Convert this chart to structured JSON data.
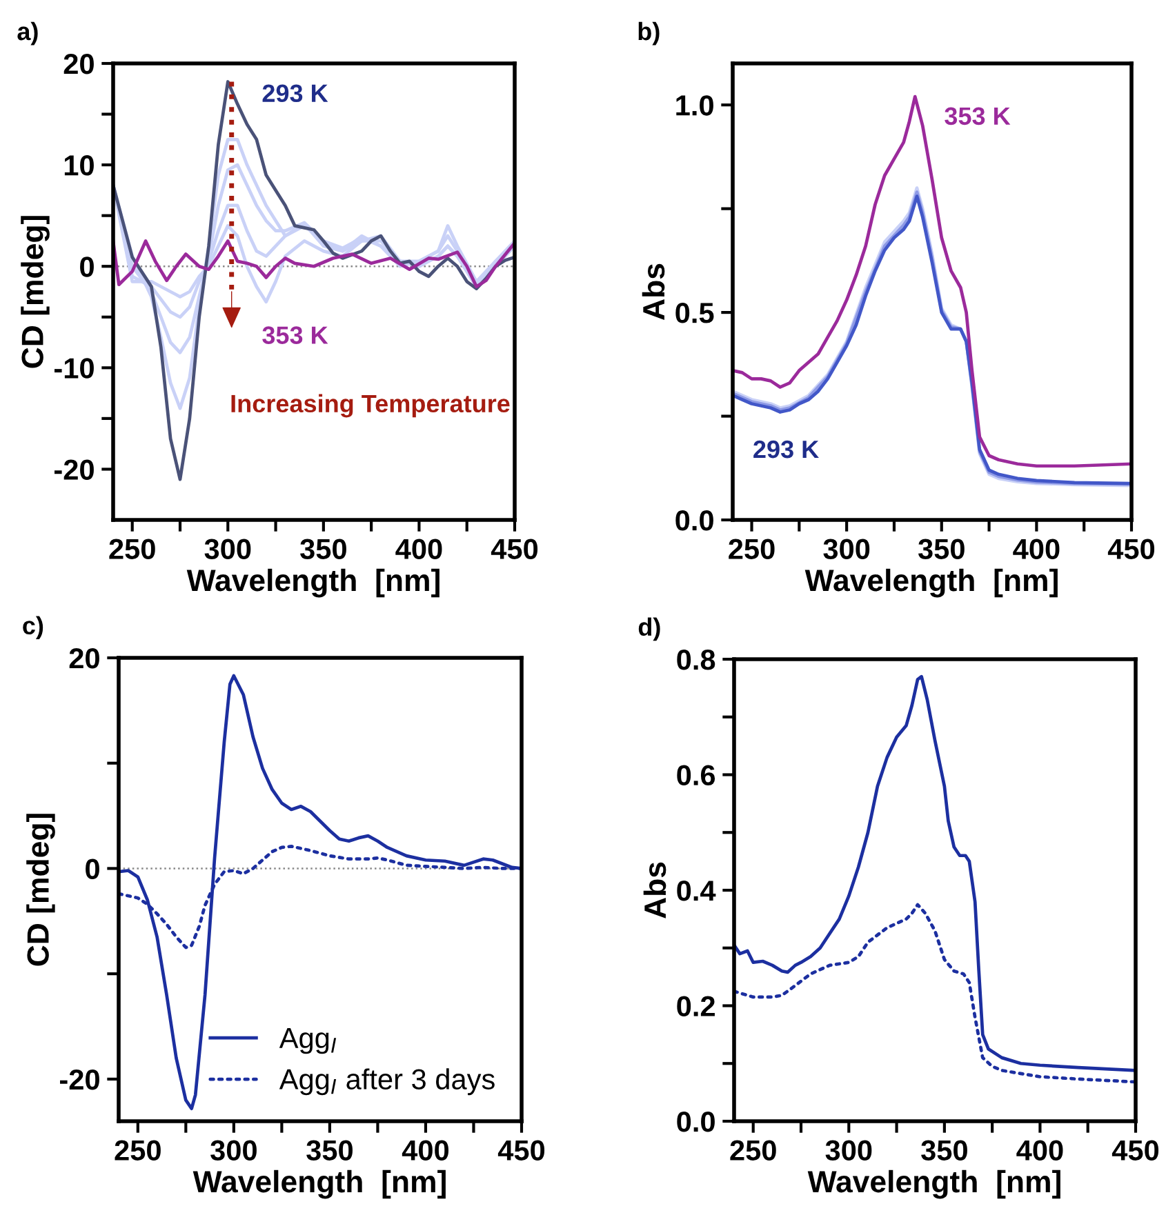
{
  "chart_data": [
    {
      "type": "line",
      "title": "a)",
      "xlabel": "Wavelength  [nm]",
      "ylabel": "CD [mdeg]",
      "xlim": [
        240,
        450
      ],
      "ylim": [
        -25,
        20
      ],
      "xticks": [
        {
          "value": 250,
          "label": "250"
        },
        {
          "value": 275,
          "label": null
        },
        {
          "value": 300,
          "label": "300"
        },
        {
          "value": 325,
          "label": null
        },
        {
          "value": 350,
          "label": "350"
        },
        {
          "value": 375,
          "label": null
        },
        {
          "value": 400,
          "label": "400"
        },
        {
          "value": 425,
          "label": null
        },
        {
          "value": 450,
          "label": "450"
        }
      ],
      "yticks": [
        {
          "value": -20,
          "label": "-20"
        },
        {
          "value": -15,
          "label": null
        },
        {
          "value": -10,
          "label": "-10"
        },
        {
          "value": -5,
          "label": null
        },
        0,
        {
          "value": 5,
          "label": null
        },
        10,
        {
          "value": 15,
          "label": null
        },
        20
      ],
      "ref_lines": [
        {
          "axis": "y",
          "value": 0,
          "color": "#888888",
          "line_style": "dotted"
        }
      ],
      "series": [
        {
          "color": "#c9d1f7",
          "x": [
            240,
            250,
            260,
            265,
            270,
            275,
            280,
            285,
            290,
            295,
            300,
            305,
            310,
            315,
            320,
            325,
            330,
            340,
            350,
            360,
            370,
            380,
            390,
            400,
            410,
            415,
            420,
            430,
            440,
            450
          ],
          "values": [
            8,
            1,
            -3,
            -7,
            -11.5,
            -14,
            -11,
            -4,
            2,
            9,
            12.5,
            12.5,
            10,
            8,
            6,
            4.5,
            3,
            4.2,
            2,
            1.5,
            2.5,
            2.5,
            0.5,
            0,
            1,
            2,
            1,
            -2,
            0,
            2
          ]
        },
        {
          "color": "#c9d1f7",
          "x": [
            240,
            250,
            260,
            265,
            270,
            275,
            280,
            285,
            290,
            295,
            300,
            305,
            310,
            315,
            320,
            325,
            330,
            340,
            350,
            360,
            370,
            380,
            390,
            400,
            410,
            415,
            420,
            430,
            440,
            450
          ],
          "values": [
            8,
            0,
            -2.5,
            -5,
            -7.5,
            -8.5,
            -7,
            -3,
            1,
            6,
            9.5,
            10,
            8,
            6,
            4.5,
            3.5,
            3.5,
            4.3,
            2.5,
            1.8,
            2.8,
            2,
            0.5,
            0.5,
            1.5,
            3,
            1.5,
            -1.8,
            0.5,
            2.3
          ]
        },
        {
          "color": "#c9d1f7",
          "x": [
            240,
            250,
            260,
            270,
            275,
            280,
            285,
            290,
            295,
            300,
            305,
            310,
            315,
            320,
            325,
            330,
            340,
            350,
            360,
            370,
            380,
            390,
            400,
            410,
            415,
            420,
            430,
            440,
            450
          ],
          "values": [
            8,
            -1,
            -2,
            -4.5,
            -5,
            -4,
            -1.5,
            0.5,
            3.5,
            6,
            6,
            3.5,
            1.5,
            1,
            2,
            3,
            4,
            2.5,
            1.5,
            3,
            2,
            0,
            0.5,
            1.5,
            4,
            2,
            -1.5,
            0.5,
            2.5
          ]
        },
        {
          "color": "#c9d1f7",
          "x": [
            240,
            250,
            260,
            270,
            275,
            280,
            285,
            290,
            295,
            300,
            305,
            310,
            315,
            320,
            325,
            330,
            340,
            350,
            360,
            370,
            380,
            390,
            400,
            410,
            415,
            420,
            430,
            440,
            450
          ],
          "values": [
            8,
            -1.5,
            -1.5,
            -2.5,
            -3,
            -2.5,
            -1,
            0,
            2,
            4,
            3,
            0,
            -2,
            -3.5,
            -1.5,
            1,
            2.5,
            1.5,
            1,
            2.5,
            3,
            0.5,
            0,
            1,
            2,
            1,
            -2,
            0,
            2.5
          ]
        },
        {
          "color": "#4a5278",
          "x": [
            240,
            250,
            260,
            265,
            270,
            275,
            280,
            285,
            290,
            295,
            300,
            305,
            310,
            315,
            320,
            325,
            330,
            335,
            340,
            345,
            350,
            355,
            360,
            370,
            375,
            380,
            385,
            390,
            395,
            400,
            405,
            410,
            415,
            420,
            425,
            430,
            435,
            440,
            445,
            450
          ],
          "values": [
            8,
            0.9,
            -2,
            -8,
            -17,
            -21,
            -15,
            -5,
            2,
            12,
            18.2,
            16,
            14,
            12.5,
            9,
            7.5,
            6,
            4,
            3.8,
            3.6,
            2.5,
            1.3,
            0.8,
            1.5,
            2.5,
            3,
            1.5,
            0.3,
            0.5,
            -0.5,
            -1,
            0,
            0.8,
            0,
            -1.5,
            -2.2,
            -1.2,
            0,
            0.6,
            0.9
          ]
        },
        {
          "color": "#9b2a9b",
          "x": [
            240,
            243,
            250,
            257,
            262,
            268,
            273,
            278,
            285,
            290,
            295,
            300,
            305,
            310,
            315,
            320,
            325,
            330,
            335,
            345,
            355,
            365,
            375,
            385,
            395,
            405,
            410,
            420,
            425,
            430,
            435,
            440,
            450
          ],
          "values": [
            2.5,
            -1.8,
            -0.5,
            2.5,
            0.5,
            -1.4,
            0,
            1.2,
            0,
            -0.3,
            1,
            2.5,
            0.5,
            0.3,
            0,
            -1.1,
            0,
            0.8,
            0.3,
            0,
            0.8,
            1.2,
            0.3,
            0.8,
            -0.3,
            0.8,
            0.7,
            1.4,
            0,
            -2,
            -1.4,
            0,
            2.3
          ]
        }
      ],
      "annotations": [
        "293 K",
        "353 K",
        "Increasing Temperature"
      ]
    },
    {
      "type": "line",
      "title": "b)",
      "xlabel": "Wavelength  [nm]",
      "ylabel": "Abs",
      "xlim": [
        240,
        450
      ],
      "ylim": [
        0,
        1.1
      ],
      "xticks": [
        {
          "value": 250,
          "label": "250"
        },
        {
          "value": 275,
          "label": null
        },
        {
          "value": 300,
          "label": "300"
        },
        {
          "value": 325,
          "label": null
        },
        {
          "value": 350,
          "label": "350"
        },
        {
          "value": 375,
          "label": null
        },
        {
          "value": 400,
          "label": "400"
        },
        {
          "value": 425,
          "label": null
        },
        {
          "value": 450,
          "label": "450"
        }
      ],
      "yticks": [
        {
          "value": 0,
          "label": "0.0"
        },
        {
          "value": 0.25,
          "label": null
        },
        0.5,
        {
          "value": 0.75,
          "label": null
        },
        {
          "value": 1,
          "label": "1.0"
        }
      ],
      "series": [
        {
          "color": "#c9d1f7",
          "x": [
            240,
            250,
            260,
            265,
            270,
            280,
            290,
            300,
            310,
            320,
            330,
            333,
            337,
            340,
            345,
            350,
            355,
            360,
            363,
            366,
            370,
            375,
            380,
            390,
            400,
            420,
            450
          ],
          "values": [
            0.31,
            0.29,
            0.28,
            0.27,
            0.275,
            0.3,
            0.35,
            0.43,
            0.56,
            0.67,
            0.72,
            0.74,
            0.8,
            0.75,
            0.64,
            0.51,
            0.47,
            0.46,
            0.43,
            0.32,
            0.16,
            0.11,
            0.1,
            0.092,
            0.088,
            0.085,
            0.083
          ]
        },
        {
          "color": "#8e9ae6",
          "x": [
            240,
            250,
            260,
            265,
            270,
            280,
            290,
            300,
            310,
            320,
            330,
            333,
            337,
            340,
            345,
            350,
            355,
            360,
            363,
            366,
            370,
            375,
            380,
            390,
            400,
            420,
            450
          ],
          "values": [
            0.305,
            0.285,
            0.275,
            0.265,
            0.27,
            0.295,
            0.345,
            0.425,
            0.55,
            0.66,
            0.71,
            0.73,
            0.79,
            0.74,
            0.63,
            0.505,
            0.465,
            0.46,
            0.43,
            0.325,
            0.165,
            0.115,
            0.105,
            0.096,
            0.091,
            0.088,
            0.086
          ]
        },
        {
          "color": "#4257c8",
          "x": [
            240,
            245,
            250,
            255,
            260,
            265,
            270,
            275,
            280,
            285,
            290,
            295,
            300,
            305,
            310,
            315,
            320,
            325,
            330,
            333,
            337,
            340,
            345,
            350,
            355,
            360,
            363,
            366,
            370,
            375,
            380,
            390,
            400,
            420,
            450
          ],
          "values": [
            0.3,
            0.29,
            0.28,
            0.275,
            0.27,
            0.26,
            0.265,
            0.28,
            0.29,
            0.31,
            0.34,
            0.38,
            0.42,
            0.47,
            0.54,
            0.6,
            0.65,
            0.68,
            0.7,
            0.72,
            0.78,
            0.73,
            0.62,
            0.5,
            0.46,
            0.46,
            0.43,
            0.33,
            0.17,
            0.12,
            0.11,
            0.1,
            0.095,
            0.09,
            0.088
          ]
        },
        {
          "color": "#9b2a9b",
          "x": [
            240,
            245,
            250,
            255,
            260,
            265,
            270,
            275,
            280,
            285,
            290,
            295,
            300,
            305,
            310,
            315,
            320,
            325,
            330,
            333,
            336,
            340,
            345,
            350,
            355,
            360,
            363,
            366,
            370,
            375,
            380,
            390,
            400,
            420,
            450
          ],
          "values": [
            0.36,
            0.355,
            0.34,
            0.34,
            0.335,
            0.32,
            0.33,
            0.36,
            0.38,
            0.4,
            0.44,
            0.48,
            0.53,
            0.59,
            0.66,
            0.76,
            0.83,
            0.87,
            0.91,
            0.96,
            1.02,
            0.95,
            0.82,
            0.68,
            0.6,
            0.56,
            0.5,
            0.36,
            0.2,
            0.155,
            0.145,
            0.135,
            0.13,
            0.13,
            0.135
          ]
        }
      ],
      "annotations": [
        "353 K",
        "293 K"
      ]
    },
    {
      "type": "line",
      "title": "c)",
      "xlabel": "Wavelength  [nm]",
      "ylabel": "CD [mdeg]",
      "xlim": [
        240,
        450
      ],
      "ylim": [
        -24,
        20
      ],
      "xticks": [
        {
          "value": 250,
          "label": "250"
        },
        {
          "value": 275,
          "label": null
        },
        {
          "value": 300,
          "label": "300"
        },
        {
          "value": 325,
          "label": null
        },
        {
          "value": 350,
          "label": "350"
        },
        {
          "value": 375,
          "label": null
        },
        {
          "value": 400,
          "label": "400"
        },
        {
          "value": 425,
          "label": null
        },
        {
          "value": 450,
          "label": "450"
        }
      ],
      "yticks": [
        {
          "value": -20,
          "label": "-20"
        },
        {
          "value": -10,
          "label": null
        },
        0,
        {
          "value": 10,
          "label": null
        },
        20
      ],
      "ref_lines": [
        {
          "axis": "y",
          "value": 0,
          "color": "#888888",
          "line_style": "dotted"
        }
      ],
      "legend": "bottom right",
      "series": [
        {
          "name": "Agg$_{I}$",
          "color": "#1c2fa0",
          "line_style": "solid",
          "x": [
            240,
            245,
            250,
            255,
            260,
            265,
            270,
            275,
            278,
            280,
            285,
            290,
            295,
            298,
            300,
            305,
            310,
            315,
            320,
            325,
            330,
            335,
            340,
            345,
            350,
            355,
            360,
            365,
            370,
            375,
            380,
            390,
            400,
            410,
            420,
            430,
            435,
            445,
            450
          ],
          "values": [
            -0.3,
            -0.2,
            -0.8,
            -3,
            -6.5,
            -12,
            -18,
            -22,
            -22.8,
            -21.5,
            -12,
            1,
            12,
            17.5,
            18.3,
            16.5,
            12.5,
            9.5,
            7.5,
            6.2,
            5.6,
            5.9,
            5.4,
            4.5,
            3.6,
            2.8,
            2.6,
            2.9,
            3.1,
            2.6,
            2,
            1.2,
            0.8,
            0.7,
            0.3,
            0.9,
            0.8,
            0.1,
            0
          ]
        },
        {
          "name": "Agg$_{I}$ after 3 days",
          "color": "#1c2fa0",
          "line_style": "dotted",
          "x": [
            240,
            250,
            255,
            260,
            265,
            270,
            275,
            278,
            282,
            285,
            290,
            295,
            300,
            305,
            310,
            315,
            320,
            325,
            330,
            340,
            350,
            360,
            370,
            375,
            380,
            390,
            400,
            410,
            420,
            430,
            440,
            450
          ],
          "values": [
            -2.4,
            -2.8,
            -3.4,
            -4.3,
            -5.3,
            -6.5,
            -7.5,
            -7.3,
            -5.5,
            -3.5,
            -1.5,
            -0.3,
            -0.2,
            -0.5,
            0,
            0.8,
            1.6,
            2,
            2.1,
            1.7,
            1.2,
            0.9,
            0.9,
            1,
            0.8,
            0.3,
            0.2,
            0.1,
            0,
            0.1,
            0,
            0
          ]
        }
      ]
    },
    {
      "type": "line",
      "title": "d)",
      "xlabel": "Wavelength  [nm]",
      "ylabel": "Abs",
      "xlim": [
        240,
        450
      ],
      "ylim": [
        0,
        0.8
      ],
      "xticks": [
        {
          "value": 250,
          "label": "250"
        },
        {
          "value": 275,
          "label": null
        },
        {
          "value": 300,
          "label": "300"
        },
        {
          "value": 325,
          "label": null
        },
        {
          "value": 350,
          "label": "350"
        },
        {
          "value": 375,
          "label": null
        },
        {
          "value": 400,
          "label": "400"
        },
        {
          "value": 425,
          "label": null
        },
        {
          "value": 450,
          "label": "450"
        }
      ],
      "yticks": [
        {
          "value": 0,
          "label": "0.0"
        },
        {
          "value": 0.1,
          "label": null
        },
        0.2,
        {
          "value": 0.3,
          "label": null
        },
        0.4,
        {
          "value": 0.5,
          "label": null
        },
        0.6,
        {
          "value": 0.7,
          "label": null
        },
        0.8
      ],
      "series": [
        {
          "color": "#1c2fa0",
          "line_style": "solid",
          "x": [
            240,
            243,
            247,
            250,
            255,
            260,
            265,
            268,
            272,
            275,
            280,
            285,
            290,
            295,
            300,
            305,
            310,
            315,
            320,
            325,
            330,
            333,
            336,
            338,
            341,
            345,
            350,
            352,
            355,
            358,
            361,
            363,
            366,
            368,
            370,
            373,
            380,
            390,
            400,
            420,
            450
          ],
          "values": [
            0.305,
            0.29,
            0.295,
            0.275,
            0.277,
            0.27,
            0.26,
            0.258,
            0.27,
            0.275,
            0.285,
            0.3,
            0.325,
            0.35,
            0.39,
            0.44,
            0.5,
            0.58,
            0.63,
            0.665,
            0.685,
            0.72,
            0.765,
            0.77,
            0.73,
            0.66,
            0.58,
            0.52,
            0.475,
            0.46,
            0.46,
            0.45,
            0.38,
            0.26,
            0.15,
            0.125,
            0.11,
            0.1,
            0.097,
            0.093,
            0.088
          ]
        },
        {
          "color": "#1c2fa0",
          "line_style": "dotted",
          "x": [
            240,
            250,
            260,
            265,
            270,
            280,
            290,
            300,
            305,
            310,
            320,
            330,
            333,
            336,
            340,
            345,
            350,
            355,
            360,
            363,
            366,
            370,
            375,
            380,
            400,
            420,
            450
          ],
          "values": [
            0.225,
            0.215,
            0.215,
            0.218,
            0.23,
            0.255,
            0.27,
            0.275,
            0.285,
            0.31,
            0.335,
            0.35,
            0.36,
            0.375,
            0.36,
            0.33,
            0.28,
            0.26,
            0.255,
            0.24,
            0.18,
            0.11,
            0.095,
            0.088,
            0.077,
            0.073,
            0.068
          ]
        }
      ]
    }
  ]
}
